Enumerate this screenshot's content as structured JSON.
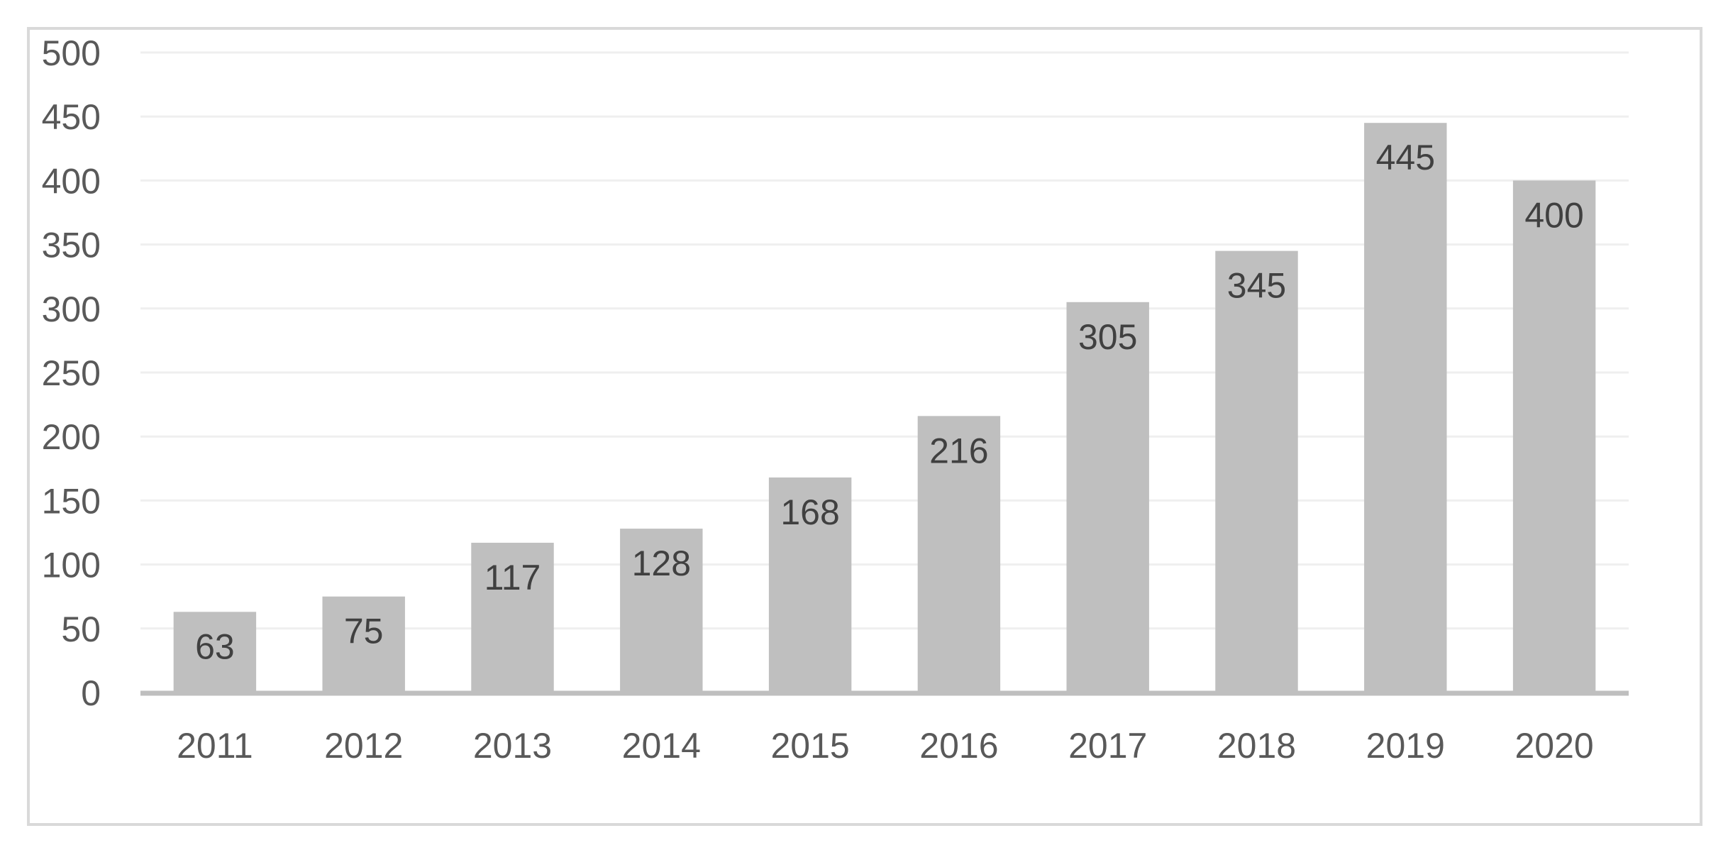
{
  "chart_data": {
    "type": "bar",
    "title": "",
    "xlabel": "",
    "ylabel": "",
    "categories": [
      "2011",
      "2012",
      "2013",
      "2014",
      "2015",
      "2016",
      "2017",
      "2018",
      "2019",
      "2020"
    ],
    "values": [
      63,
      75,
      117,
      128,
      168,
      216,
      305,
      345,
      445,
      400
    ],
    "data_labels": [
      "63",
      "75",
      "117",
      "128",
      "168",
      "216",
      "305",
      "345",
      "445",
      "400"
    ],
    "ylim": [
      0,
      500
    ],
    "yticks": [
      0,
      50,
      100,
      150,
      200,
      250,
      300,
      350,
      400,
      450,
      500
    ],
    "ytick_labels": [
      "0",
      "50",
      "100",
      "150",
      "200",
      "250",
      "300",
      "350",
      "400",
      "450",
      "500"
    ],
    "grid": true,
    "legend": "none",
    "data_label_position": "inside-end",
    "colors": {
      "bar": "#bfbfbf",
      "gridline": "#efefef",
      "axis": "#bfbfbf",
      "tick_text": "#595959",
      "data_label_text": "#404040",
      "frame": "#d9d9d9"
    }
  }
}
